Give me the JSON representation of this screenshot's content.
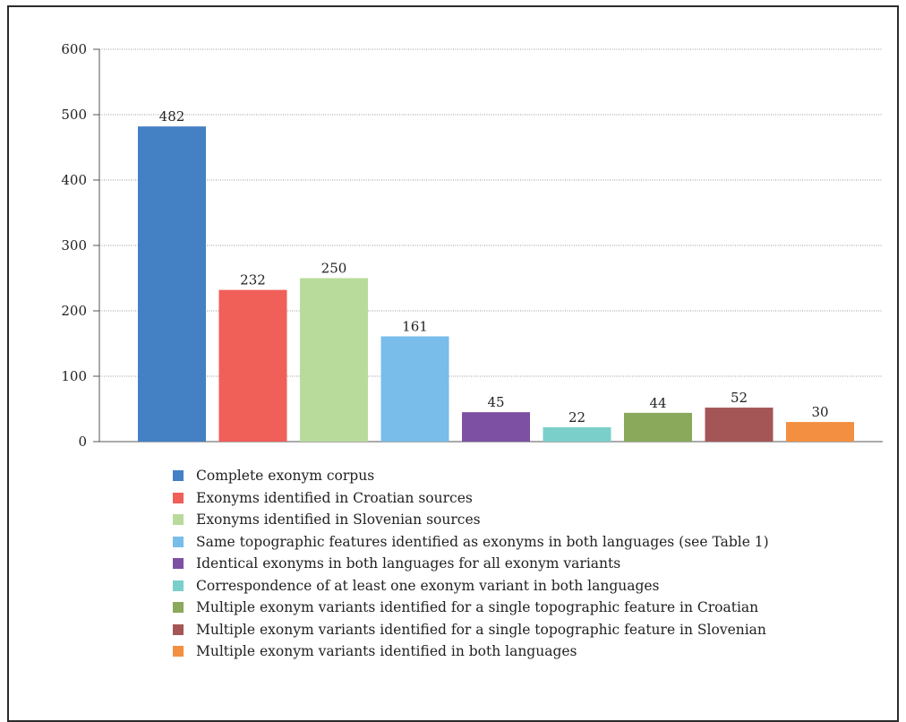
{
  "chart_data": {
    "type": "bar",
    "title": "",
    "xlabel": "",
    "ylabel": "",
    "ylim": [
      0,
      600
    ],
    "yticks": [
      0,
      100,
      200,
      300,
      400,
      500,
      600
    ],
    "grid": true,
    "legend_position": "bottom",
    "series": [
      {
        "name": "Complete exonym corpus",
        "value": 482,
        "color": "#4480C4"
      },
      {
        "name": "Exonyms identified in Croatian sources",
        "value": 232,
        "color": "#F05F58"
      },
      {
        "name": "Exonyms identified in Slovenian sources",
        "value": 250,
        "color": "#B8DB9C"
      },
      {
        "name": "Same topographic features identified as exonyms in both languages (see Table 1)",
        "value": 161,
        "color": "#79BDEA"
      },
      {
        "name": "Identical exonyms in both languages for all exonym variants",
        "value": 45,
        "color": "#7D50A3"
      },
      {
        "name": "Correspondence of at least one exonym variant in both languages",
        "value": 22,
        "color": "#7ACFCB"
      },
      {
        "name": "Multiple exonym variants identified for a single topographic feature in Croatian",
        "value": 44,
        "color": "#8AA95A"
      },
      {
        "name": "Multiple exonym variants identified for a single topographic feature in Slovenian",
        "value": 52,
        "color": "#A45657"
      },
      {
        "name": "Multiple exonym variants identified in both languages",
        "value": 30,
        "color": "#F38F40"
      }
    ]
  }
}
